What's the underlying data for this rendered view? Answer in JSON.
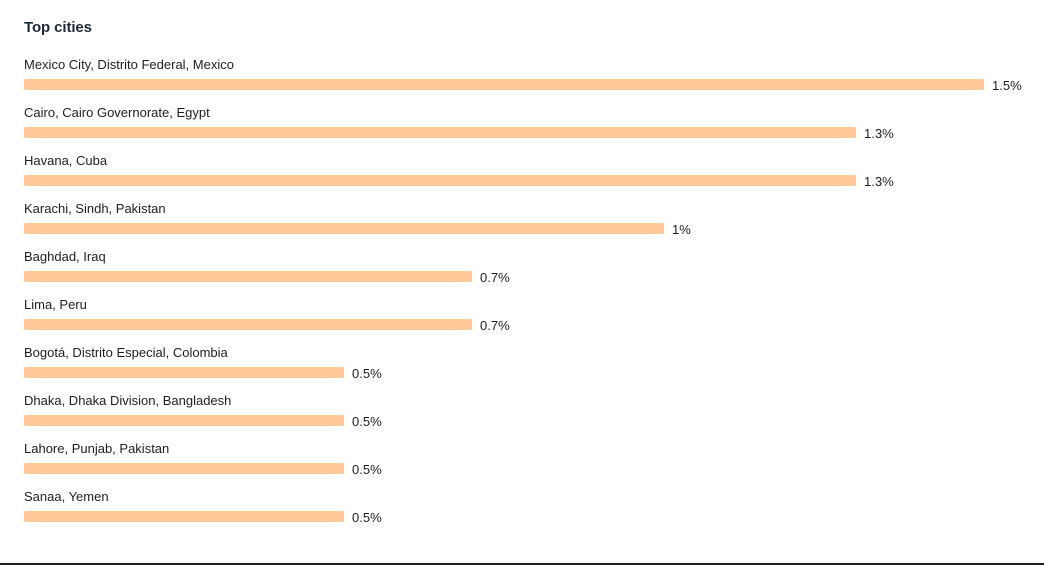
{
  "panel": {
    "title": "Top cities"
  },
  "colors": {
    "bar": "#ffc899",
    "text": "#1c1e21"
  },
  "chart_data": {
    "type": "bar",
    "orientation": "horizontal",
    "title": "Top cities",
    "categories": [
      "Mexico City, Distrito Federal, Mexico",
      "Cairo, Cairo Governorate, Egypt",
      "Havana, Cuba",
      "Karachi, Sindh, Pakistan",
      "Baghdad, Iraq",
      "Lima, Peru",
      "Bogotá, Distrito Especial, Colombia",
      "Dhaka, Dhaka Division, Bangladesh",
      "Lahore, Punjab, Pakistan",
      "Sanaa, Yemen"
    ],
    "values": [
      1.5,
      1.3,
      1.3,
      1,
      0.7,
      0.7,
      0.5,
      0.5,
      0.5,
      0.5
    ],
    "value_labels": [
      "1.5%",
      "1.3%",
      "1.3%",
      "1%",
      "0.7%",
      "0.7%",
      "0.5%",
      "0.5%",
      "0.5%",
      "0.5%"
    ],
    "unit": "%",
    "xlim": [
      0,
      1.5
    ],
    "grid": false,
    "legend": "none"
  }
}
